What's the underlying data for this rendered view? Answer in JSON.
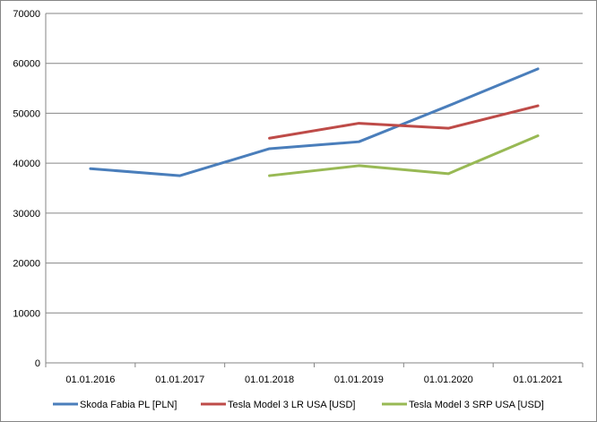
{
  "chart_data": {
    "type": "line",
    "title": "",
    "xlabel": "",
    "ylabel": "",
    "categories": [
      "01.01.2016",
      "01.01.2017",
      "01.01.2018",
      "01.01.2019",
      "01.01.2020",
      "01.01.2021"
    ],
    "ylim": [
      0,
      70000
    ],
    "y_ticks": [
      "0",
      "10000",
      "20000",
      "30000",
      "40000",
      "50000",
      "60000",
      "70000"
    ],
    "grid": "horizontal",
    "legend_position": "bottom",
    "series": [
      {
        "name": "Skoda Fabia PL [PLN]",
        "color": "#4a7ebb",
        "values": [
          38900,
          37500,
          42900,
          44300,
          51500,
          58900
        ]
      },
      {
        "name": "Tesla Model 3 LR USA [USD]",
        "color": "#be4b48",
        "values": [
          null,
          null,
          45000,
          48000,
          47000,
          51500
        ]
      },
      {
        "name": "Tesla Model 3 SRP USA [USD]",
        "color": "#98b954",
        "values": [
          null,
          null,
          37500,
          39500,
          37900,
          45500
        ]
      }
    ]
  }
}
